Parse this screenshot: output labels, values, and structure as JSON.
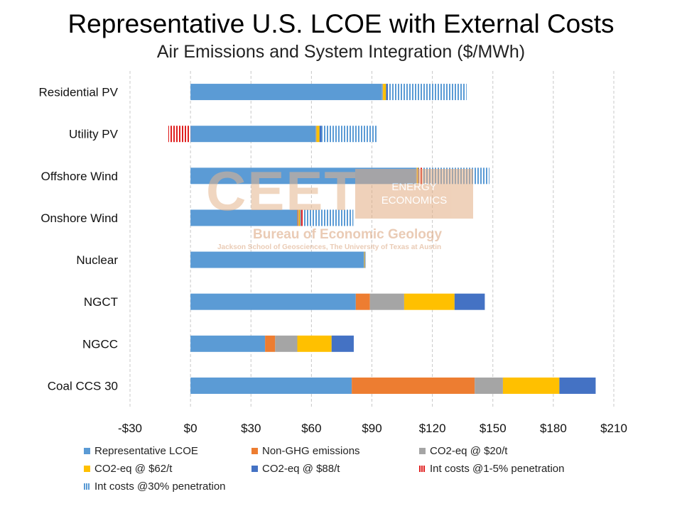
{
  "chart_data": {
    "type": "bar",
    "orientation": "horizontal",
    "stacked": true,
    "title": "Representative U.S. LCOE with External Costs",
    "subtitle": "Air Emissions and System Integration ($/MWh)",
    "categories": [
      "Residential PV",
      "Utility PV",
      "Offshore Wind",
      "Onshore Wind",
      "Nuclear",
      "NGCT",
      "NGCC",
      "Coal CCS 30"
    ],
    "series": [
      {
        "name": "Representative LCOE",
        "color": "#5b9bd5",
        "pattern": "solid",
        "values": [
          95,
          62,
          112,
          53,
          86,
          82,
          37,
          80
        ]
      },
      {
        "name": "Non-GHG emissions",
        "color": "#ed7d31",
        "pattern": "solid",
        "values": [
          0,
          0,
          0,
          0.5,
          0,
          7,
          5,
          61
        ]
      },
      {
        "name": "CO2-eq @ $20/t",
        "color": "#a5a5a5",
        "pattern": "solid",
        "values": [
          0.5,
          0.5,
          0.3,
          0.3,
          0.2,
          17,
          11,
          14
        ]
      },
      {
        "name": "CO2-eq @ $62/t",
        "color": "#ffc000",
        "pattern": "solid",
        "values": [
          1.5,
          1.5,
          0.6,
          0.6,
          0.3,
          25,
          17,
          28
        ]
      },
      {
        "name": "CO2-eq @ $88/t",
        "color": "#4472c4",
        "pattern": "solid",
        "values": [
          1,
          1,
          0.4,
          0.4,
          0.3,
          15,
          11,
          18
        ]
      },
      {
        "name": "Int costs @1-5% penetration",
        "color": "#e02020",
        "pattern": "vstripe",
        "values": [
          0,
          -11,
          2,
          1,
          0,
          0,
          0,
          0
        ]
      },
      {
        "name": "Int costs @30% penetration",
        "color": "#5b9bd5",
        "pattern": "vstripe",
        "values": [
          39,
          28,
          33,
          25,
          0,
          0,
          0,
          0
        ]
      }
    ],
    "xlim": [
      -30,
      210
    ],
    "xticks": [
      -30,
      0,
      30,
      60,
      90,
      120,
      150,
      180,
      210
    ],
    "xtick_labels": [
      "-$30",
      "$0",
      "$30",
      "$60",
      "$90",
      "$120",
      "$150",
      "$180",
      "$210"
    ],
    "grid": "vertical-dashed",
    "legend_position": "bottom"
  },
  "watermark": {
    "logo_text": "CEET",
    "box_line1": "ENERGY",
    "box_line2": "ECONOMICS",
    "org": "Bureau of Economic Geology",
    "school": "Jackson School of Geosciences, The University of Texas at Austin"
  }
}
